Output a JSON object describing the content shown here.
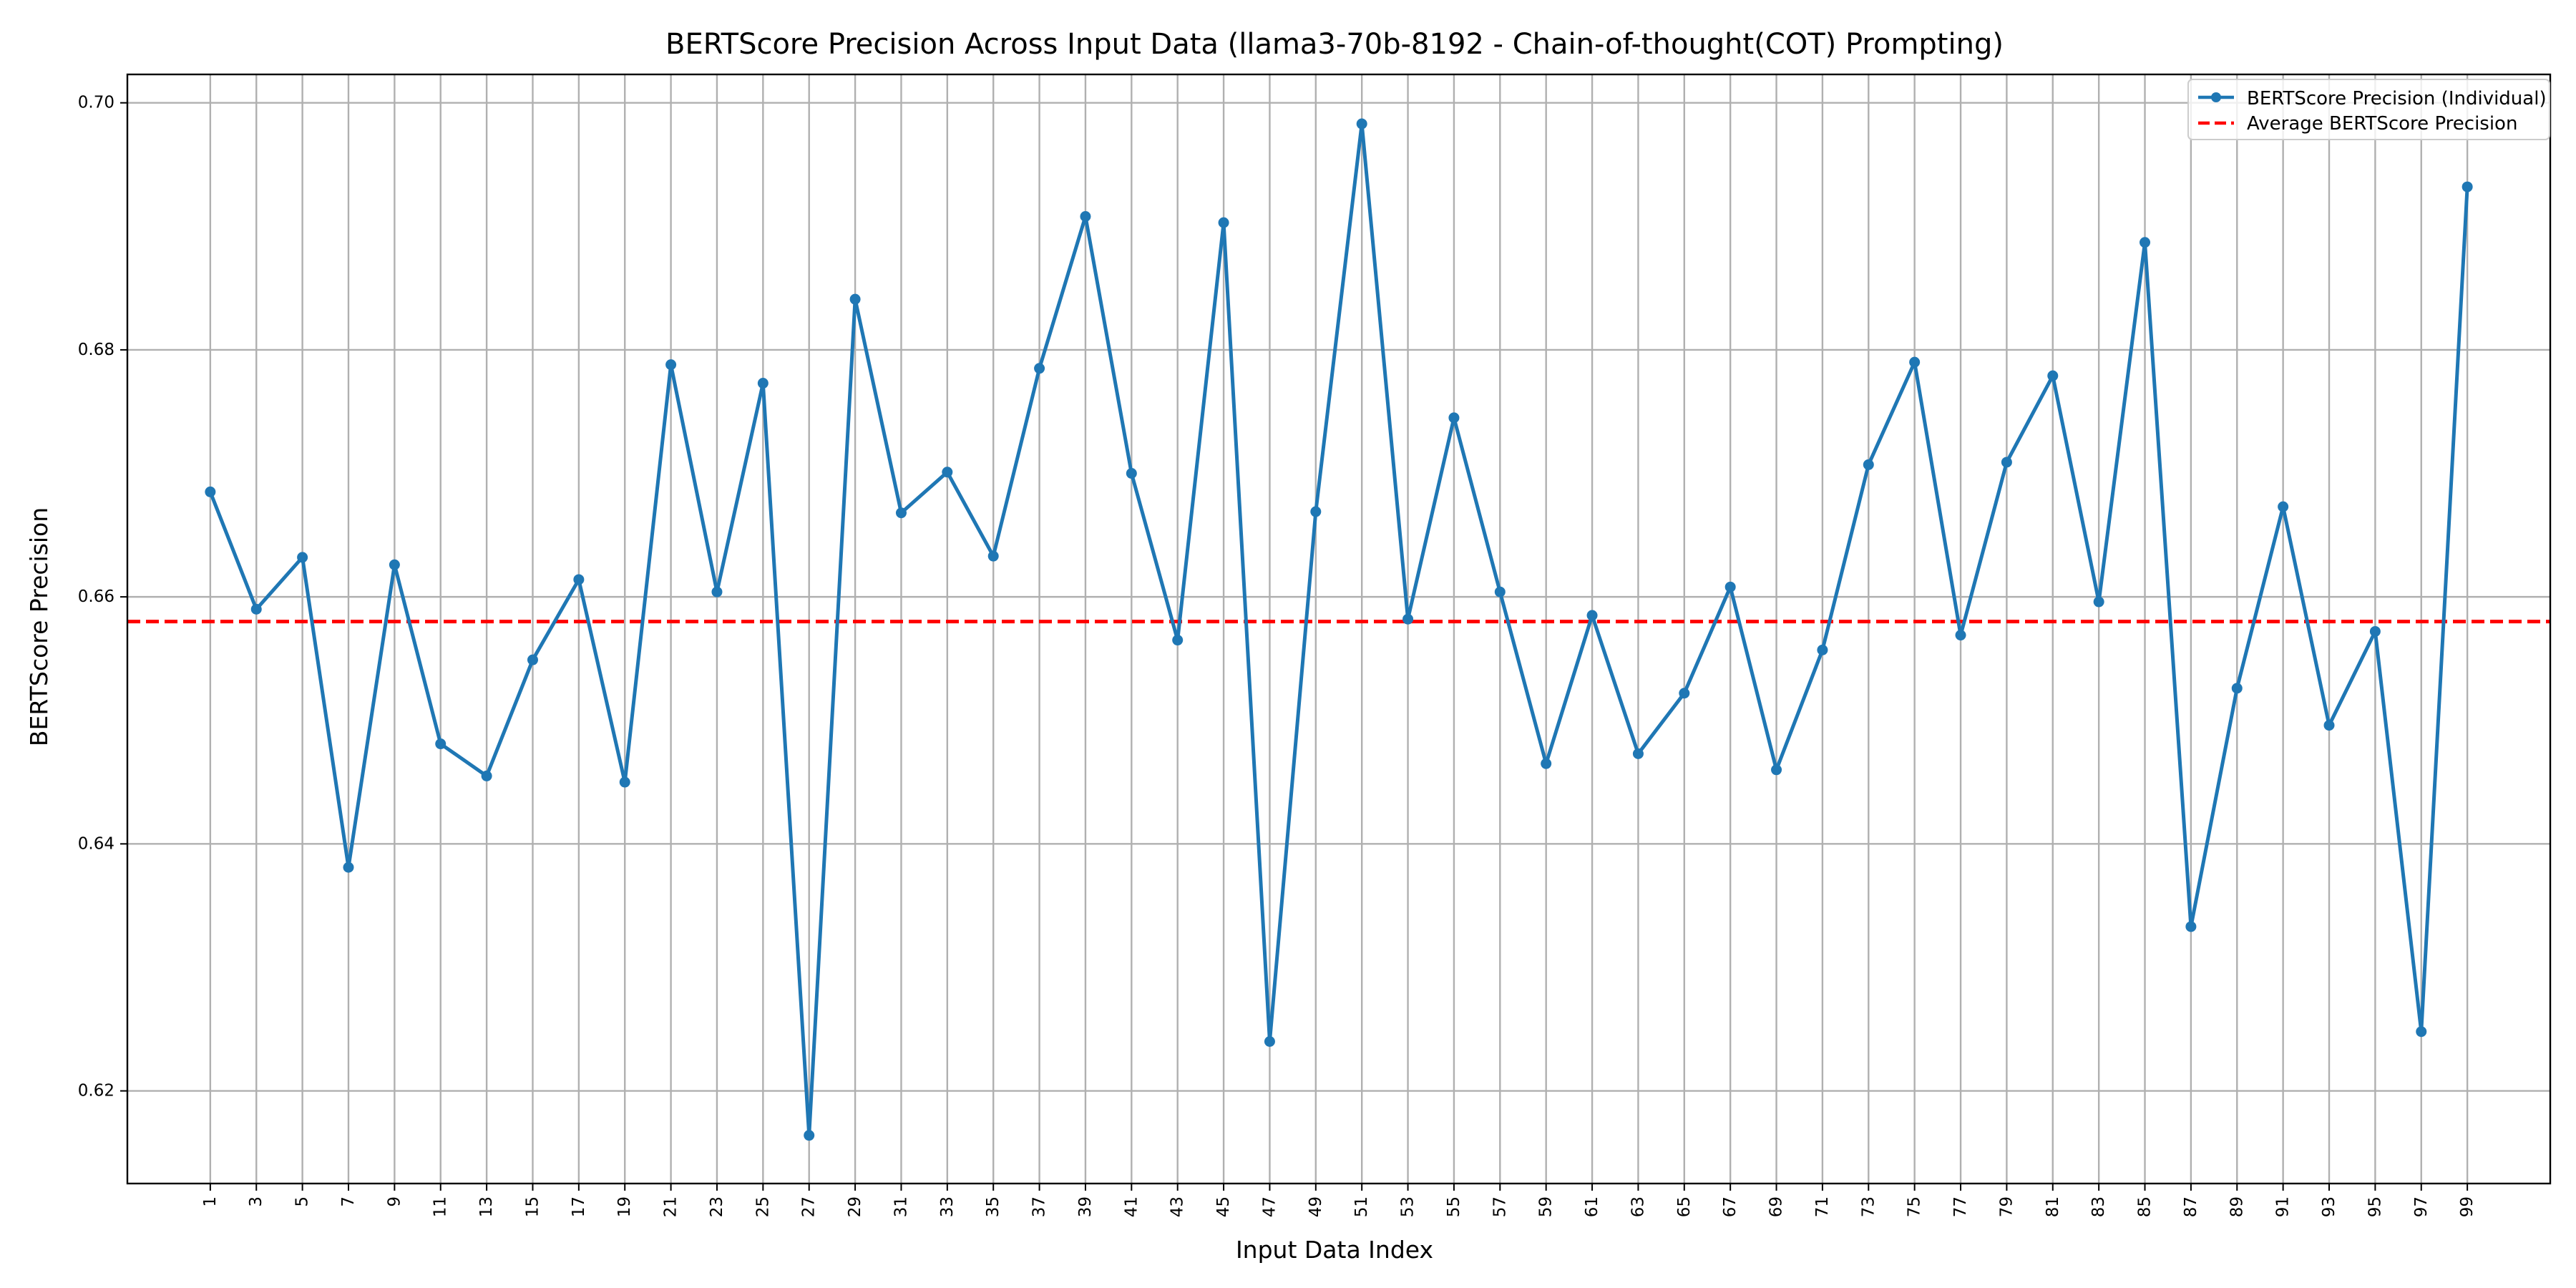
{
  "chart_data": {
    "type": "line",
    "title": "BERTScore Precision Across Input Data (llama3-70b-8192 - Chain-of-thought(COT) Prompting)",
    "xlabel": "Input Data Index",
    "ylabel": "BERTScore Precision",
    "x": [
      1,
      3,
      5,
      7,
      9,
      11,
      13,
      15,
      17,
      19,
      21,
      23,
      25,
      27,
      29,
      31,
      33,
      35,
      37,
      39,
      41,
      43,
      45,
      47,
      49,
      51,
      53,
      55,
      57,
      59,
      61,
      63,
      65,
      67,
      69,
      71,
      73,
      75,
      77,
      79,
      81,
      83,
      85,
      87,
      89,
      91,
      93,
      95,
      97,
      99
    ],
    "xticks": [
      "1",
      "3",
      "5",
      "7",
      "9",
      "11",
      "13",
      "15",
      "17",
      "19",
      "21",
      "23",
      "25",
      "27",
      "29",
      "31",
      "33",
      "35",
      "37",
      "39",
      "41",
      "43",
      "45",
      "47",
      "49",
      "51",
      "53",
      "55",
      "57",
      "59",
      "61",
      "63",
      "65",
      "67",
      "69",
      "71",
      "73",
      "75",
      "77",
      "79",
      "81",
      "83",
      "85",
      "87",
      "89",
      "91",
      "93",
      "95",
      "97",
      "99"
    ],
    "yticks": [
      "0.62",
      "0.64",
      "0.66",
      "0.68",
      "0.70"
    ],
    "ytick_values": [
      0.62,
      0.64,
      0.66,
      0.68,
      0.7
    ],
    "xlim": [
      -2.6,
      102.6
    ],
    "ylim": [
      0.6125,
      0.7023
    ],
    "grid": true,
    "legend_position": "top-right",
    "series": [
      {
        "name": "BERTScore Precision (Individual)",
        "color": "#1f77b4",
        "style": "solid-with-markers",
        "values": [
          0.6685,
          0.659,
          0.6632,
          0.6381,
          0.6626,
          0.6481,
          0.6455,
          0.6549,
          0.6614,
          0.645,
          0.6788,
          0.6604,
          0.6773,
          0.6164,
          0.6841,
          0.6668,
          0.6701,
          0.6633,
          0.6785,
          0.6908,
          0.67,
          0.6565,
          0.6903,
          0.624,
          0.6669,
          0.6983,
          0.6582,
          0.6745,
          0.6604,
          0.6465,
          0.6585,
          0.6473,
          0.6522,
          0.6608,
          0.646,
          0.6557,
          0.6707,
          0.679,
          0.6569,
          0.6709,
          0.6779,
          0.6596,
          0.6887,
          0.6333,
          0.6526,
          0.6673,
          0.6496,
          0.6572,
          0.6248,
          0.6932
        ]
      },
      {
        "name": "Average BERTScore Precision",
        "color": "#ff0000",
        "style": "dashed",
        "value": 0.658
      }
    ]
  }
}
